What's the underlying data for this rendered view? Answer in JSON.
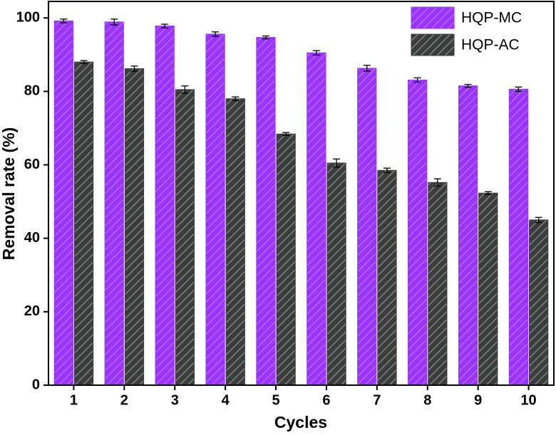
{
  "chart_data": {
    "type": "bar",
    "x_label": "Cycles",
    "y_label": "Removal rate (%)",
    "categories": [
      "1",
      "2",
      "3",
      "4",
      "5",
      "6",
      "7",
      "8",
      "9",
      "10"
    ],
    "series": [
      {
        "name": "HQP-MC",
        "color": "#9933ff",
        "values": [
          99.2,
          98.9,
          97.8,
          95.6,
          94.7,
          90.5,
          86.3,
          83.1,
          81.5,
          80.6
        ],
        "errors": [
          0.5,
          0.8,
          0.5,
          0.6,
          0.4,
          0.6,
          0.8,
          0.6,
          0.4,
          0.6
        ]
      },
      {
        "name": "HQP-AC",
        "color": "#3c3c3c",
        "values": [
          88.0,
          86.2,
          80.5,
          78.0,
          68.4,
          60.5,
          58.5,
          55.2,
          52.3,
          45.0
        ],
        "errors": [
          0.4,
          0.7,
          1.0,
          0.5,
          0.4,
          1.1,
          0.6,
          1.0,
          0.4,
          0.7
        ]
      }
    ],
    "ylim": [
      0,
      104.5
    ],
    "yticks": [
      0,
      20,
      40,
      60,
      80,
      100
    ],
    "legend": "top-right"
  }
}
